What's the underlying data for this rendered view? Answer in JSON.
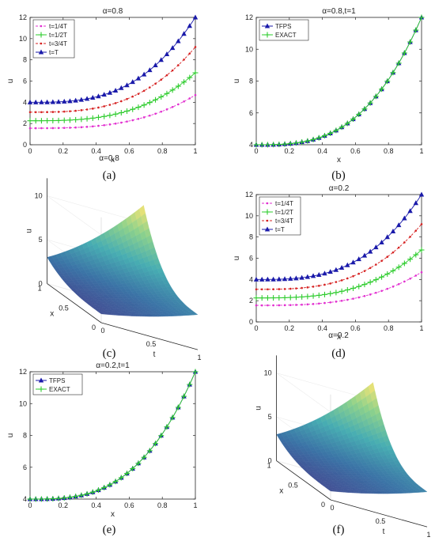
{
  "captions": {
    "a": "(a)",
    "b": "(b)",
    "c": "(c)",
    "d": "(d)",
    "e": "(e)",
    "f": "(f)"
  },
  "colors": {
    "t14": "#e22fd0",
    "t12": "#2ecc2e",
    "t34": "#d62222",
    "tT": "#1a1aaa",
    "tfps": "#1a1aaa",
    "exact": "#2ecc2e"
  },
  "chart_data": [
    {
      "id": "a",
      "type": "line",
      "title": "α=0.8",
      "xlabel": "x",
      "ylabel": "u",
      "xlim": [
        0,
        1
      ],
      "ylim": [
        0,
        12
      ],
      "xticks": [
        "0",
        "0.2",
        "0.4",
        "0.6",
        "0.8",
        "1"
      ],
      "yticks": [
        "0",
        "2",
        "4",
        "6",
        "8",
        "10",
        "12"
      ],
      "legend": "top-left",
      "x": [
        0,
        0.0345,
        0.069,
        0.1034,
        0.1379,
        0.1724,
        0.2069,
        0.2414,
        0.2759,
        0.3103,
        0.3448,
        0.3793,
        0.4138,
        0.4483,
        0.4828,
        0.5172,
        0.5517,
        0.5862,
        0.6207,
        0.6552,
        0.6897,
        0.7241,
        0.7586,
        0.7931,
        0.8276,
        0.8621,
        0.8966,
        0.931,
        0.9655,
        1
      ],
      "series": [
        {
          "name": "t=1/4T",
          "marker": "dot",
          "color": "#e22fd0",
          "scale": 1.56
        },
        {
          "name": "t=1/2T",
          "marker": "plus",
          "color": "#2ecc2e",
          "scale": 2.26
        },
        {
          "name": "t=3/4T",
          "marker": "dot",
          "color": "#d62222",
          "scale": 3.07
        },
        {
          "name": "t=T",
          "marker": "triangle",
          "color": "#1a1aaa",
          "scale": 4.0
        }
      ],
      "shape": "u = scale * (1 + 2x^3)"
    },
    {
      "id": "b",
      "type": "line",
      "title": "α=0.8,t=1",
      "xlabel": "x",
      "ylabel": "u",
      "xlim": [
        0,
        1
      ],
      "ylim": [
        4,
        12
      ],
      "xticks": [
        "0",
        "0.2",
        "0.4",
        "0.6",
        "0.8",
        "1"
      ],
      "yticks": [
        "4",
        "6",
        "8",
        "10",
        "12"
      ],
      "legend": "top-left",
      "series": [
        {
          "name": "TFPS",
          "marker": "triangle",
          "color": "#1a1aaa"
        },
        {
          "name": "EXACT",
          "marker": "plus",
          "color": "#2ecc2e"
        }
      ],
      "shape": "u = 4 * (1 + 2x^3)"
    },
    {
      "id": "c",
      "type": "surface",
      "title": "α=0.8",
      "xlabel": "x",
      "ylabel": "t",
      "zlabel": "u",
      "zticks": [
        "0",
        "5",
        "10"
      ],
      "xticks": [
        "0",
        "0.5",
        "1"
      ],
      "tticks": [
        "0",
        "0.5",
        "1"
      ],
      "shape": "u = (1 + 2x^3) * (1 + t)^2"
    },
    {
      "id": "d",
      "type": "line",
      "title": "α=0.2",
      "xlabel": "x",
      "ylabel": "u",
      "xlim": [
        0,
        1
      ],
      "ylim": [
        0,
        12
      ],
      "xticks": [
        "0",
        "0.2",
        "0.4",
        "0.6",
        "0.8",
        "1"
      ],
      "yticks": [
        "0",
        "2",
        "4",
        "6",
        "8",
        "10",
        "12"
      ],
      "legend": "top-left",
      "series": [
        {
          "name": "t=1/4T",
          "marker": "dot",
          "color": "#e22fd0",
          "scale": 1.56
        },
        {
          "name": "t=1/2T",
          "marker": "plus",
          "color": "#2ecc2e",
          "scale": 2.26
        },
        {
          "name": "t=3/4T",
          "marker": "dot",
          "color": "#d62222",
          "scale": 3.07
        },
        {
          "name": "t=T",
          "marker": "triangle",
          "color": "#1a1aaa",
          "scale": 4.0
        }
      ],
      "shape": "u = scale * (1 + 2x^3)"
    },
    {
      "id": "e",
      "type": "line",
      "title": "α=0.2,t=1",
      "xlabel": "x",
      "ylabel": "u",
      "xlim": [
        0,
        1
      ],
      "ylim": [
        4,
        12
      ],
      "xticks": [
        "0",
        "0.2",
        "0.4",
        "0.6",
        "0.8",
        "1"
      ],
      "yticks": [
        "4",
        "6",
        "8",
        "10",
        "12"
      ],
      "legend": "top-left",
      "series": [
        {
          "name": "TFPS",
          "marker": "triangle",
          "color": "#1a1aaa"
        },
        {
          "name": "EXACT",
          "marker": "plus",
          "color": "#2ecc2e"
        }
      ],
      "shape": "u = 4 * (1 + 2x^3)"
    },
    {
      "id": "f",
      "type": "surface",
      "title": "α=0.2",
      "xlabel": "x",
      "ylabel": "t",
      "zlabel": "u",
      "zticks": [
        "0",
        "5",
        "10"
      ],
      "xticks": [
        "0",
        "0.5",
        "1"
      ],
      "tticks": [
        "0",
        "0.5",
        "1"
      ],
      "shape": "u = (1 + 2x^3) * (1 + t)^2"
    }
  ]
}
